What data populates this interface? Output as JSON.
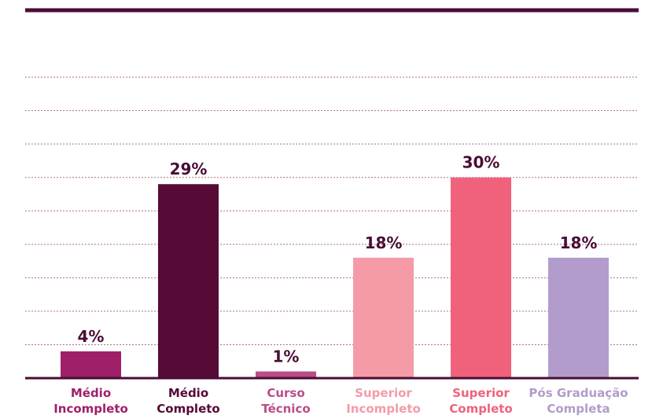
{
  "chart_data": {
    "type": "bar",
    "categories": [
      [
        "Médio",
        "Incompleto"
      ],
      [
        "Médio",
        "Completo"
      ],
      [
        "Curso",
        "Técnico"
      ],
      [
        "Superior",
        "Incompleto"
      ],
      [
        "Superior",
        "Completo"
      ],
      [
        "Pós Graduação",
        "Completa"
      ]
    ],
    "values": [
      4,
      29,
      1,
      18,
      30,
      18
    ],
    "value_labels": [
      "4%",
      "29%",
      "1%",
      "18%",
      "30%",
      "18%"
    ],
    "bar_colors": [
      "#a01f69",
      "#560a36",
      "#b94d86",
      "#f59ba8",
      "#f0627c",
      "#b29ccb"
    ],
    "label_colors": [
      "#a01f69",
      "#560a36",
      "#b94d86",
      "#f59ba8",
      "#f0627c",
      "#b29ccb"
    ],
    "value_label_color": "#4a0d35",
    "axis_color": "#4a0d35",
    "gridline_color": "#8c3f66",
    "ylim": [
      0,
      55
    ],
    "grid": true,
    "title": "",
    "xlabel": "",
    "ylabel": ""
  }
}
